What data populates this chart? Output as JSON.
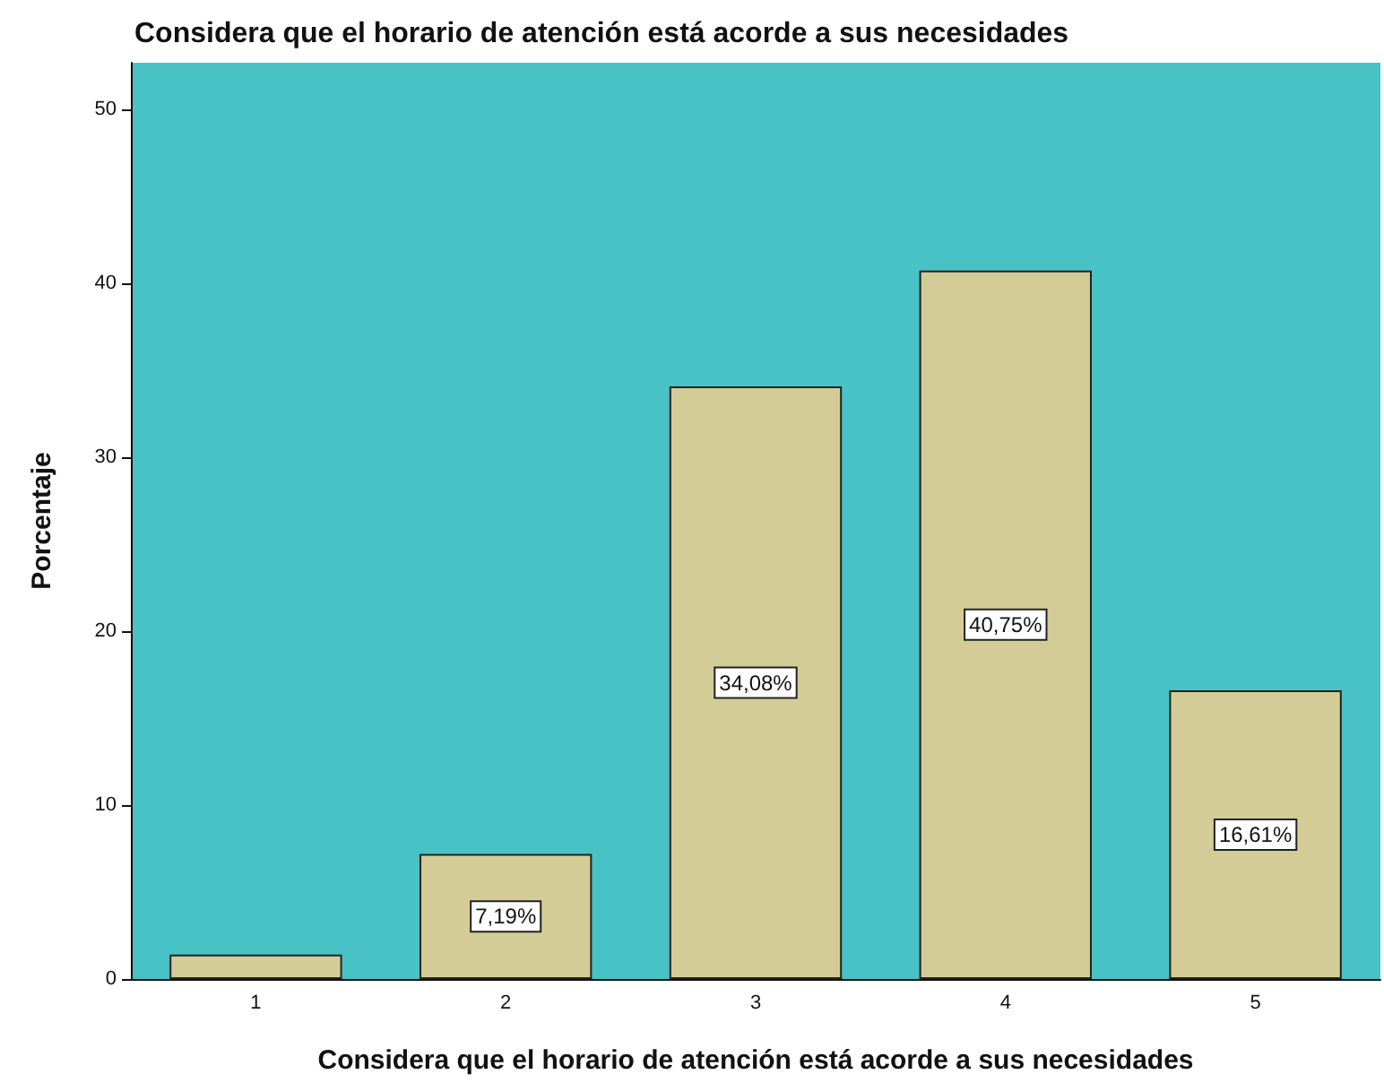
{
  "chart_data": {
    "type": "bar",
    "title": "Considera que el horario de atención está acorde a sus necesidades",
    "xlabel": "Considera que el horario de atención está acorde a sus necesidades",
    "ylabel": "Porcentaje",
    "categories": [
      "1",
      "2",
      "3",
      "4",
      "5"
    ],
    "values": [
      1.4,
      7.19,
      34.08,
      40.75,
      16.61
    ],
    "value_labels": [
      null,
      "7,19%",
      "34,08%",
      "40,75%",
      "16,61%"
    ],
    "color": "#d3cc96",
    "ylim": [
      0,
      52.7
    ],
    "yticks": [
      0,
      10,
      20,
      30,
      40,
      50
    ],
    "grid": false
  }
}
